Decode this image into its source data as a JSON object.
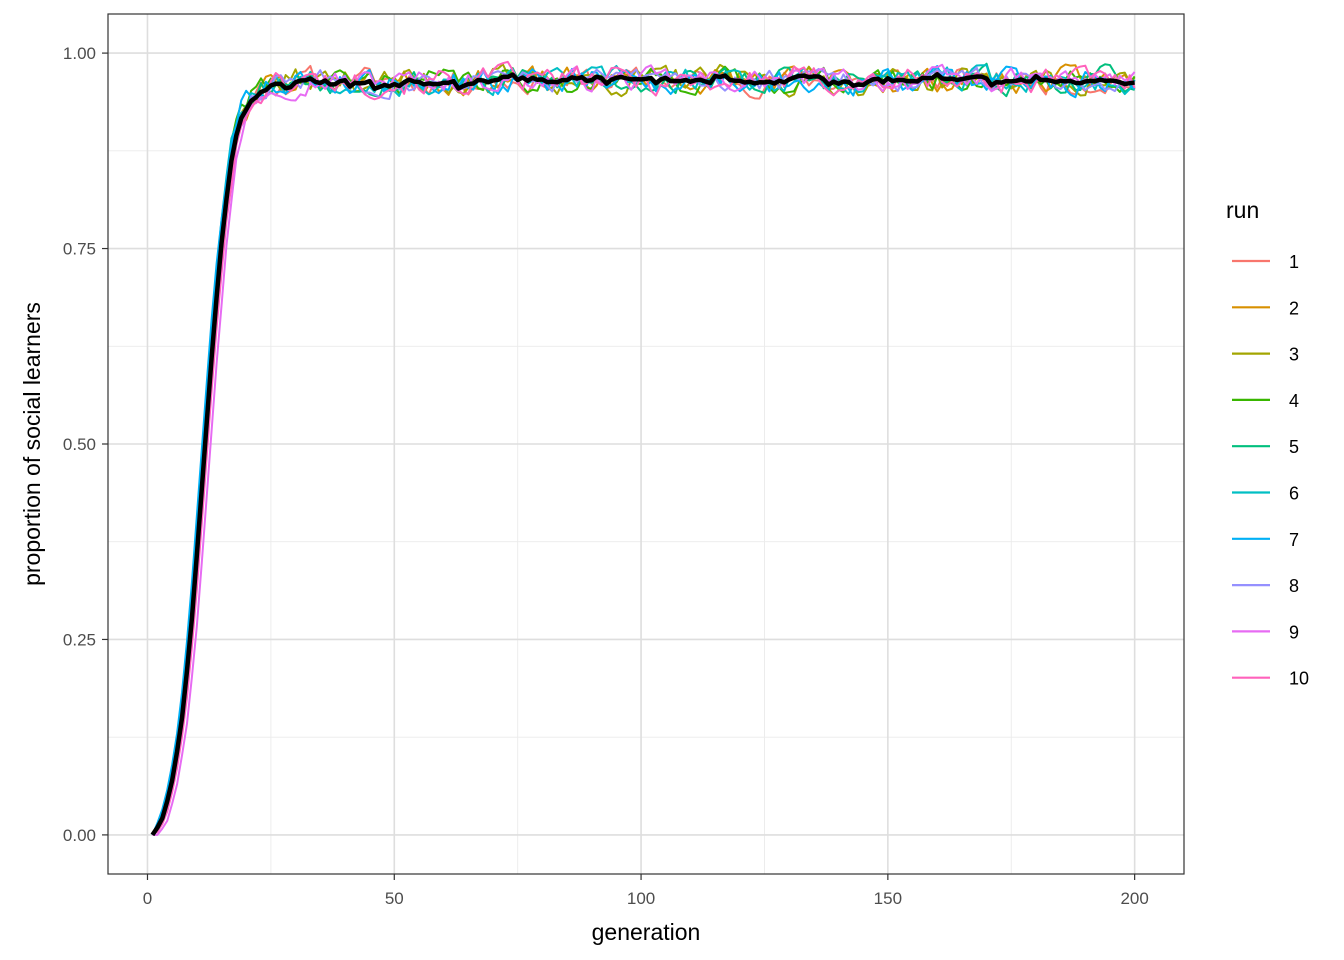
{
  "chart_data": {
    "type": "line",
    "title": "",
    "xlabel": "generation",
    "ylabel": "proportion of social learners",
    "xlim": [
      -8,
      210
    ],
    "ylim": [
      -0.05,
      1.05
    ],
    "x_ticks": [
      0,
      50,
      100,
      150,
      200
    ],
    "x_tick_labels": [
      "0",
      "50",
      "100",
      "150",
      "200"
    ],
    "y_ticks": [
      0,
      0.25,
      0.5,
      0.75,
      1
    ],
    "y_tick_labels": [
      "0.00",
      "0.25",
      "0.50",
      "0.75",
      "1.00"
    ],
    "grid": true,
    "legend": {
      "title": "run",
      "placement": "right",
      "entries": [
        "1",
        "2",
        "3",
        "4",
        "5",
        "6",
        "7",
        "8",
        "9",
        "10"
      ]
    },
    "x_range": [
      1,
      200
    ],
    "rise_checkpoints": {
      "x": [
        1,
        3,
        5,
        7,
        9,
        11,
        13,
        15,
        17,
        19,
        21,
        23,
        25
      ],
      "y": [
        0.0,
        0.02,
        0.07,
        0.15,
        0.28,
        0.45,
        0.62,
        0.77,
        0.87,
        0.92,
        0.945,
        0.955,
        0.96
      ]
    },
    "plateau_level": 0.965,
    "series": [
      {
        "name": "1",
        "color": "#F8766D",
        "noise": 0.01,
        "seed": 11,
        "lag": 0.0
      },
      {
        "name": "2",
        "color": "#D89000",
        "noise": 0.01,
        "seed": 23,
        "lag": 0.2
      },
      {
        "name": "3",
        "color": "#A3A500",
        "noise": 0.011,
        "seed": 37,
        "lag": 0.0
      },
      {
        "name": "4",
        "color": "#39B600",
        "noise": 0.009,
        "seed": 41,
        "lag": -0.2
      },
      {
        "name": "5",
        "color": "#00BF7D",
        "noise": 0.01,
        "seed": 53,
        "lag": -0.3
      },
      {
        "name": "6",
        "color": "#00BFC4",
        "noise": 0.01,
        "seed": 67,
        "lag": -0.4
      },
      {
        "name": "7",
        "color": "#00B0F6",
        "noise": 0.011,
        "seed": 79,
        "lag": -0.5
      },
      {
        "name": "8",
        "color": "#9590FF",
        "noise": 0.009,
        "seed": 83,
        "lag": 0.3
      },
      {
        "name": "9",
        "color": "#E76BF3",
        "noise": 0.009,
        "seed": 97,
        "lag": 1.2
      },
      {
        "name": "10",
        "color": "#FF62BC",
        "noise": 0.011,
        "seed": 101,
        "lag": 0.6
      }
    ],
    "mean_line": {
      "color": "#000000"
    }
  }
}
